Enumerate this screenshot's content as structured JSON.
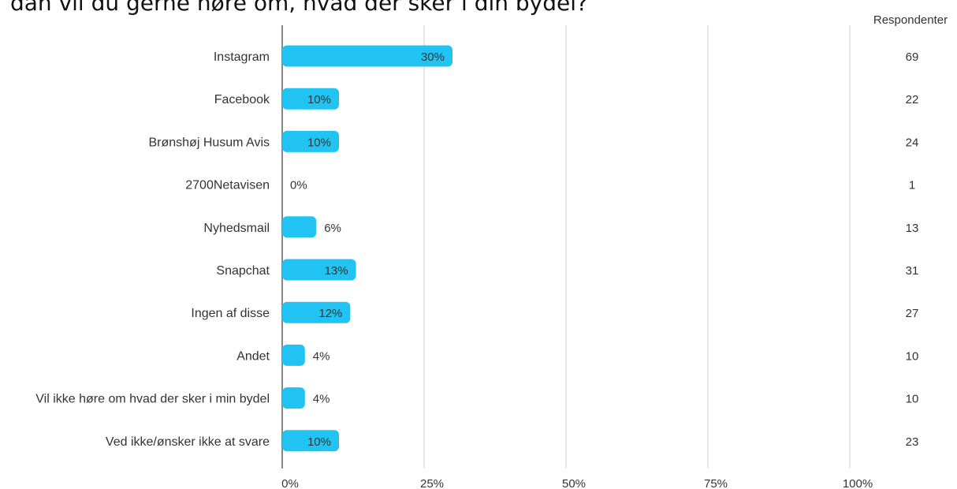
{
  "title": "dan vil du gerne høre om, hvad der sker i din bydel?",
  "respondents_header": "Respondenter",
  "colors": {
    "bar": "#21c3f3",
    "grid": "#cccccc",
    "axis": "#888888"
  },
  "chart_data": {
    "type": "bar",
    "orientation": "horizontal",
    "categories": [
      "Instagram",
      "Facebook",
      "Brønshøj Husum Avis",
      "2700Netavisen",
      "Nyhedsmail",
      "Snapchat",
      "Ingen af disse",
      "Andet",
      "Vil ikke høre om hvad der sker i min bydel",
      "Ved ikke/ønsker ikke at svare"
    ],
    "values": [
      30,
      10,
      10,
      0,
      6,
      13,
      12,
      4,
      4,
      10
    ],
    "value_labels": [
      "30%",
      "10%",
      "10%",
      "0%",
      "6%",
      "13%",
      "12%",
      "4%",
      "4%",
      "10%"
    ],
    "respondents": [
      "69",
      "22",
      "24",
      "1",
      "13",
      "31",
      "27",
      "10",
      "10",
      "23"
    ],
    "xlim": [
      0,
      100
    ],
    "xticks": [
      0,
      25,
      50,
      75,
      100
    ],
    "xtick_labels": [
      "0%",
      "25%",
      "50%",
      "75%",
      "100%"
    ],
    "grid": true
  }
}
